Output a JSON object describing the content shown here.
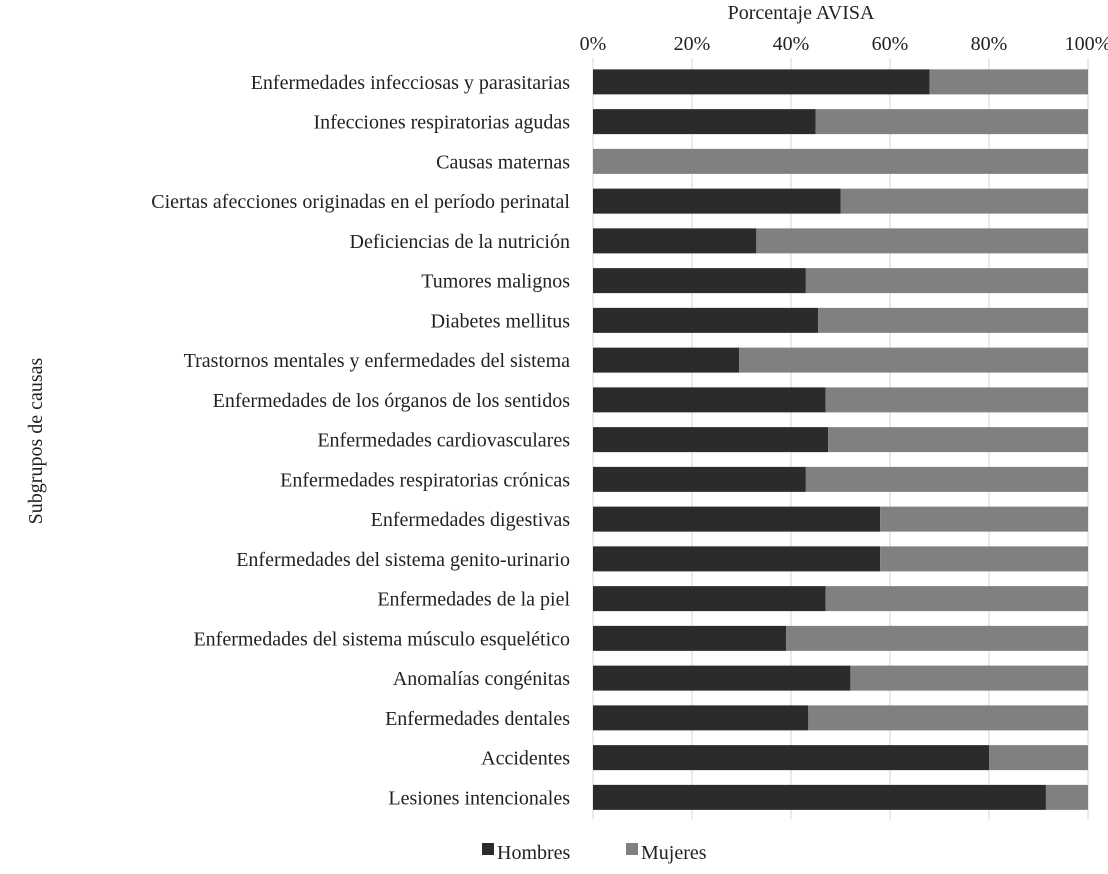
{
  "chart_data": {
    "type": "bar",
    "orientation": "horizontal",
    "stacked": "percent",
    "xlabel": "Porcentaje AVISA",
    "ylabel": "Subgrupos de causas",
    "xlim": [
      0,
      100
    ],
    "x_ticks": [
      "0%",
      "20%",
      "40%",
      "60%",
      "80%",
      "100%"
    ],
    "grid": false,
    "legend_position": "bottom",
    "categories": [
      "Enfermedades infecciosas y parasitarias",
      "Infecciones respiratorias agudas",
      "Causas maternas",
      "Ciertas afecciones originadas en el período perinatal",
      "Deficiencias de la nutrición",
      "Tumores malignos",
      "Diabetes mellitus",
      "Trastornos mentales y enfermedades del sistema",
      "Enfermedades de los órganos de los sentidos",
      "Enfermedades cardiovasculares",
      "Enfermedades respiratorias crónicas",
      "Enfermedades digestivas",
      "Enfermedades del sistema genito-urinario",
      "Enfermedades de la piel",
      "Enfermedades del sistema músculo esquelético",
      "Anomalías congénitas",
      "Enfermedades dentales",
      "Accidentes",
      "Lesiones intencionales"
    ],
    "series": [
      {
        "name": "Hombres",
        "color": "#2b2b2b",
        "values": [
          68,
          45,
          0,
          50,
          33,
          43,
          45.5,
          29.5,
          47,
          47.5,
          43,
          58,
          58,
          47,
          39,
          52,
          43.5,
          80,
          91.5
        ]
      },
      {
        "name": "Mujeres",
        "color": "#808080",
        "values": [
          32,
          55,
          100,
          50,
          67,
          57,
          54.5,
          70.5,
          53,
          52.5,
          57,
          42,
          42,
          53,
          61,
          48,
          56.5,
          20,
          8.5
        ]
      }
    ]
  }
}
